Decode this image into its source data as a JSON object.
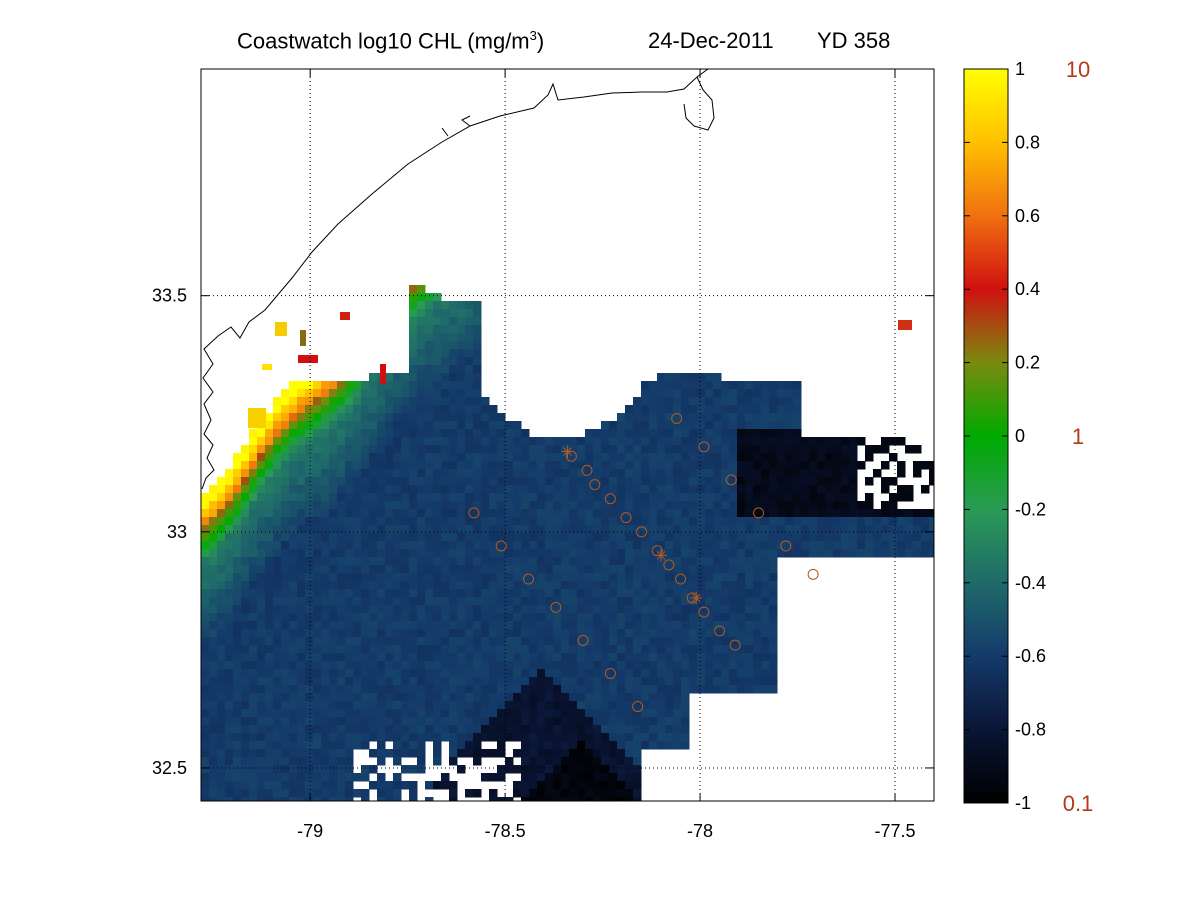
{
  "title": {
    "main": "Coastwatch  log10  CHL (mg/m",
    "sup": "3",
    "close": ")",
    "date": "24-Dec-2011",
    "yearday": "YD 358"
  },
  "chart_data": {
    "type": "heatmap",
    "variable": "log10 CHL (mg/m3)",
    "xlim": [
      -79.28,
      -77.4
    ],
    "ylim": [
      32.43,
      33.98
    ],
    "x_ticks": [
      "-79",
      "-78.5",
      "-78",
      "-77.5"
    ],
    "y_ticks": [
      "33.5",
      "33",
      "32.5"
    ],
    "grid": true,
    "grid_style": "dotted",
    "colorbar": {
      "range": [
        -1,
        1
      ],
      "ticks": [
        "1",
        "0.8",
        "0.6",
        "0.4",
        "0.2",
        "0",
        "-0.2",
        "-0.4",
        "-0.6",
        "-0.8",
        "-1"
      ],
      "secondary_ticks": [
        "10",
        "1",
        "0.1"
      ],
      "secondary_tick_color": "#b33a1a",
      "colormap": [
        "#000000",
        "#0a1535",
        "#143a6a",
        "#1f6a6a",
        "#2a9a55",
        "#00aa00",
        "#7a8a10",
        "#d01010",
        "#f07010",
        "#ffc000",
        "#ffff00"
      ]
    },
    "station_marker_color": "#b25a1e",
    "stations_circle": [
      [
        -78.33,
        33.16
      ],
      [
        -78.29,
        33.13
      ],
      [
        -78.27,
        33.1
      ],
      [
        -78.23,
        33.07
      ],
      [
        -78.19,
        33.03
      ],
      [
        -78.15,
        33.0
      ],
      [
        -78.11,
        32.96
      ],
      [
        -78.08,
        32.93
      ],
      [
        -78.05,
        32.9
      ],
      [
        -78.02,
        32.86
      ],
      [
        -77.99,
        32.83
      ],
      [
        -77.95,
        32.79
      ],
      [
        -77.91,
        32.76
      ],
      [
        -78.06,
        33.24
      ],
      [
        -77.99,
        33.18
      ],
      [
        -77.92,
        33.11
      ],
      [
        -77.85,
        33.04
      ],
      [
        -77.78,
        32.97
      ],
      [
        -77.71,
        32.91
      ],
      [
        -78.58,
        33.04
      ],
      [
        -78.51,
        32.97
      ],
      [
        -78.44,
        32.9
      ],
      [
        -78.37,
        32.84
      ],
      [
        -78.3,
        32.77
      ],
      [
        -78.23,
        32.7
      ],
      [
        -78.16,
        32.63
      ]
    ],
    "stations_cross": [
      [
        -78.34,
        33.17
      ],
      [
        -78.1,
        32.95
      ],
      [
        -78.01,
        32.86
      ]
    ]
  }
}
